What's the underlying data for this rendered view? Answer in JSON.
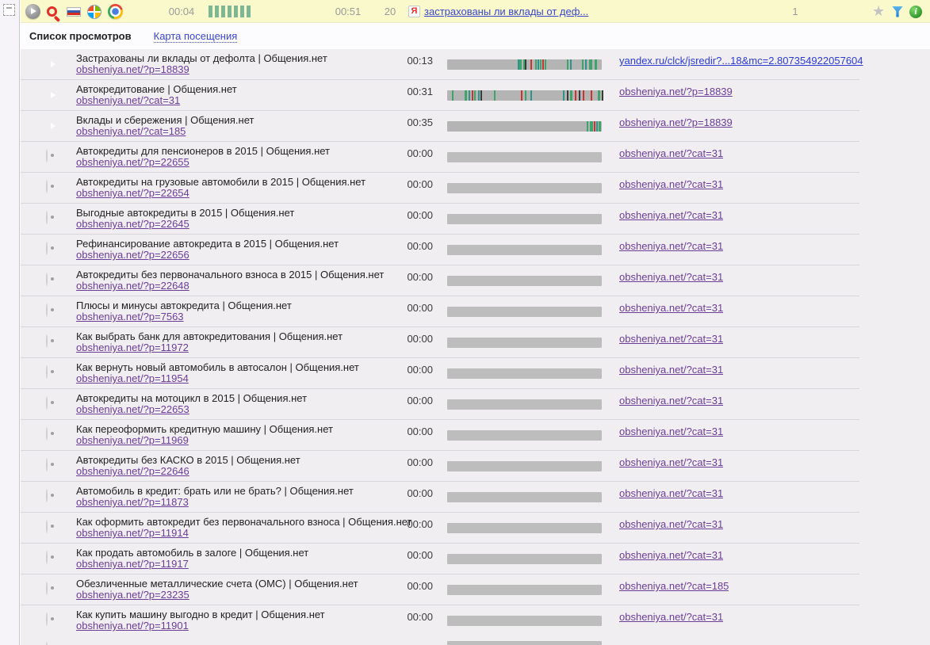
{
  "toolbar": {
    "time_current": "00:04",
    "time_total": "00:51",
    "views_count": "20",
    "segment_count": 7,
    "query_label": "застрахованы ли вклады от деф...",
    "page_number": "1"
  },
  "tabs": {
    "list": "Список просмотров",
    "map": "Карта посещения"
  },
  "colors": {
    "toolbar_bg": "#f9f9cb",
    "row_bg": "#f1eef2",
    "bar_gray": "#bdbdbd",
    "link_blue": "#2b3bd0",
    "link_visited": "#6a3d96",
    "segment_green": "#7db794"
  },
  "stripe_colors": {
    "g": "#3fa46c",
    "t": "#2e938d",
    "r": "#c93430",
    "d": "#3b3b3b"
  },
  "rows": [
    {
      "icon": "play",
      "title": "Застрахованы ли вклады от дефолта | Общения.нет",
      "url": "obsheniya.net/?p=18839",
      "time": "00:13",
      "link": "yandex.ru/clck/jsredir?...18&mc=2.807354922057604",
      "visited": false,
      "stripes": [
        {
          "p": 0.455,
          "c": "t"
        },
        {
          "p": 0.468,
          "c": "g",
          "w": 3
        },
        {
          "p": 0.49,
          "c": "g"
        },
        {
          "p": 0.505,
          "c": "d"
        },
        {
          "p": 0.54,
          "c": "r"
        },
        {
          "p": 0.567,
          "c": "g"
        },
        {
          "p": 0.585,
          "c": "t"
        },
        {
          "p": 0.602,
          "c": "g"
        },
        {
          "p": 0.617,
          "c": "r"
        },
        {
          "p": 0.633,
          "c": "g"
        },
        {
          "p": 0.775,
          "c": "g"
        },
        {
          "p": 0.793,
          "c": "t"
        },
        {
          "p": 0.87,
          "c": "g"
        },
        {
          "p": 0.893,
          "c": "t"
        },
        {
          "p": 0.916,
          "c": "g",
          "w": 4
        },
        {
          "p": 0.952,
          "c": "g",
          "w": 3
        }
      ]
    },
    {
      "icon": "play",
      "title": "Автокредитование | Общения.нет",
      "url": "obsheniya.net/?cat=31",
      "time": "00:31",
      "link": "obsheniya.net/?p=18839",
      "visited": true,
      "stripes": [
        {
          "p": 0.03,
          "c": "g"
        },
        {
          "p": 0.112,
          "c": "g",
          "w": 3
        },
        {
          "p": 0.138,
          "c": "t"
        },
        {
          "p": 0.158,
          "c": "r"
        },
        {
          "p": 0.175,
          "c": "g"
        },
        {
          "p": 0.198,
          "c": "t"
        },
        {
          "p": 0.214,
          "c": "d"
        },
        {
          "p": 0.3,
          "c": "g"
        },
        {
          "p": 0.475,
          "c": "r"
        },
        {
          "p": 0.503,
          "c": "g"
        },
        {
          "p": 0.538,
          "c": "t"
        },
        {
          "p": 0.748,
          "c": "t"
        },
        {
          "p": 0.776,
          "c": "d"
        },
        {
          "p": 0.794,
          "c": "g",
          "w": 3
        },
        {
          "p": 0.824,
          "c": "r"
        },
        {
          "p": 0.853,
          "c": "d"
        },
        {
          "p": 0.878,
          "c": "r"
        },
        {
          "p": 0.93,
          "c": "r"
        },
        {
          "p": 0.972,
          "c": "g",
          "w": 3
        },
        {
          "p": 0.998,
          "c": "d"
        }
      ]
    },
    {
      "icon": "play",
      "title": "Вклады и сбережения | Общения.нет",
      "url": "obsheniya.net/?cat=185",
      "time": "00:35",
      "link": "obsheniya.net/?p=18839",
      "visited": true,
      "stripes": [
        {
          "p": 0.9,
          "c": "g"
        },
        {
          "p": 0.922,
          "c": "g",
          "w": 4
        },
        {
          "p": 0.947,
          "c": "r"
        },
        {
          "p": 0.962,
          "c": "t"
        },
        {
          "p": 0.982,
          "c": "g",
          "w": 3
        }
      ]
    },
    {
      "icon": "dot",
      "title": "Автокредиты для пенсионеров в 2015 | Общения.нет",
      "url": "obsheniya.net/?p=22655",
      "time": "00:00",
      "link": "obsheniya.net/?cat=31",
      "visited": true,
      "stripes": []
    },
    {
      "icon": "dot",
      "title": "Автокредиты на грузовые автомобили в 2015 | Общения.нет",
      "url": "obsheniya.net/?p=22654",
      "time": "00:00",
      "link": "obsheniya.net/?cat=31",
      "visited": true,
      "stripes": []
    },
    {
      "icon": "dot",
      "title": "Выгодные автокредиты в 2015 | Общения.нет",
      "url": "obsheniya.net/?p=22645",
      "time": "00:00",
      "link": "obsheniya.net/?cat=31",
      "visited": true,
      "stripes": []
    },
    {
      "icon": "dot",
      "title": "Рефинансирование автокредита в 2015 | Общения.нет",
      "url": "obsheniya.net/?p=22656",
      "time": "00:00",
      "link": "obsheniya.net/?cat=31",
      "visited": true,
      "stripes": []
    },
    {
      "icon": "dot",
      "title": "Автокредиты без первоначального взноса в 2015 | Общения.нет",
      "url": "obsheniya.net/?p=22648",
      "time": "00:00",
      "link": "obsheniya.net/?cat=31",
      "visited": true,
      "stripes": []
    },
    {
      "icon": "dot",
      "title": "Плюсы и минусы автокредита | Общения.нет",
      "url": "obsheniya.net/?p=7563",
      "time": "00:00",
      "link": "obsheniya.net/?cat=31",
      "visited": true,
      "stripes": []
    },
    {
      "icon": "dot",
      "title": "Как выбрать банк для автокредитования | Общения.нет",
      "url": "obsheniya.net/?p=11972",
      "time": "00:00",
      "link": "obsheniya.net/?cat=31",
      "visited": true,
      "stripes": []
    },
    {
      "icon": "dot",
      "title": "Как вернуть новый автомобиль в автосалон | Общения.нет",
      "url": "obsheniya.net/?p=11954",
      "time": "00:00",
      "link": "obsheniya.net/?cat=31",
      "visited": true,
      "stripes": []
    },
    {
      "icon": "dot",
      "title": "Автокредиты на мотоцикл в 2015 | Общения.нет",
      "url": "obsheniya.net/?p=22653",
      "time": "00:00",
      "link": "obsheniya.net/?cat=31",
      "visited": true,
      "stripes": []
    },
    {
      "icon": "dot",
      "title": "Как переоформить кредитную машину | Общения.нет",
      "url": "obsheniya.net/?p=11969",
      "time": "00:00",
      "link": "obsheniya.net/?cat=31",
      "visited": true,
      "stripes": []
    },
    {
      "icon": "dot",
      "title": "Автокредиты без КАСКО в 2015 | Общения.нет",
      "url": "obsheniya.net/?p=22646",
      "time": "00:00",
      "link": "obsheniya.net/?cat=31",
      "visited": true,
      "stripes": []
    },
    {
      "icon": "dot",
      "title": "Автомобиль в кредит: брать или не брать? | Общения.нет",
      "url": "obsheniya.net/?p=11873",
      "time": "00:00",
      "link": "obsheniya.net/?cat=31",
      "visited": true,
      "stripes": []
    },
    {
      "icon": "dot",
      "title": "Как оформить автокредит без первоначального взноса | Общения.нет",
      "url": "obsheniya.net/?p=11914",
      "time": "00:00",
      "link": "obsheniya.net/?cat=31",
      "visited": true,
      "stripes": []
    },
    {
      "icon": "dot",
      "title": "Как продать автомобиль в залоге | Общения.нет",
      "url": "obsheniya.net/?p=11917",
      "time": "00:00",
      "link": "obsheniya.net/?cat=31",
      "visited": true,
      "stripes": []
    },
    {
      "icon": "dot",
      "title": "Обезличенные металлические счета (ОМС) | Общения.нет",
      "url": "obsheniya.net/?p=23235",
      "time": "00:00",
      "link": "obsheniya.net/?cat=185",
      "visited": true,
      "stripes": []
    },
    {
      "icon": "dot",
      "title": "Как купить машину выгодно в кредит | Общения.нет",
      "url": "obsheniya.net/?p=11901",
      "time": "00:00",
      "link": "obsheniya.net/?cat=31",
      "visited": true,
      "stripes": []
    }
  ]
}
